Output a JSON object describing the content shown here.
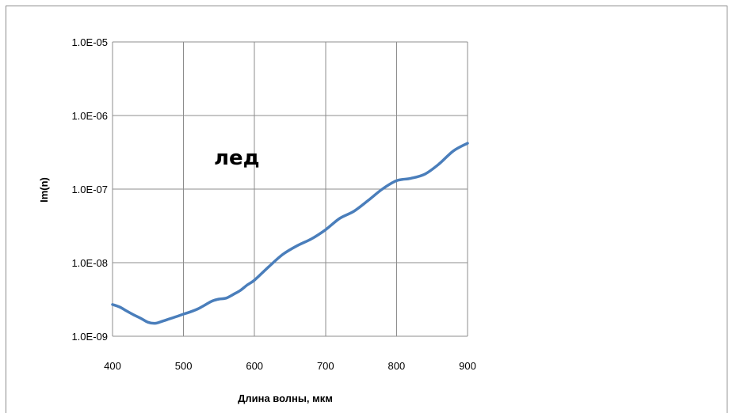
{
  "chart_data": {
    "type": "line",
    "title": "",
    "xlabel": "Длина волны, мкм",
    "ylabel": "Im(n)",
    "xlim": [
      400,
      900
    ],
    "ylim": [
      1e-09,
      1e-05
    ],
    "yscale": "log",
    "grid": true,
    "x_ticks": [
      "400",
      "500",
      "600",
      "700",
      "800",
      "900"
    ],
    "y_ticks": [
      "1.0E-05",
      "1.0E-06",
      "1.0E-07",
      "1.0E-08",
      "1.0E-09"
    ],
    "annotation": "лед",
    "line_color": "#4a7ebb",
    "series": [
      {
        "x": [
          400,
          410,
          420,
          430,
          440,
          450,
          460,
          470,
          480,
          490,
          500,
          510,
          520,
          530,
          540,
          550,
          560,
          570,
          580,
          590,
          600,
          620,
          640,
          660,
          680,
          700,
          720,
          740,
          760,
          780,
          800,
          820,
          840,
          860,
          880,
          900
        ],
        "y": [
          2.7e-09,
          2.5e-09,
          2.2e-09,
          1.95e-09,
          1.75e-09,
          1.55e-09,
          1.5e-09,
          1.6e-09,
          1.72e-09,
          1.85e-09,
          2e-09,
          2.15e-09,
          2.35e-09,
          2.65e-09,
          3e-09,
          3.2e-09,
          3.3e-09,
          3.7e-09,
          4.2e-09,
          5e-09,
          5.8e-09,
          8.8e-09,
          1.3e-08,
          1.7e-08,
          2.1e-08,
          2.8e-08,
          4e-08,
          5e-08,
          7e-08,
          1e-07,
          1.3e-07,
          1.4e-07,
          1.6e-07,
          2.2e-07,
          3.3e-07,
          4.2e-07
        ]
      }
    ]
  }
}
